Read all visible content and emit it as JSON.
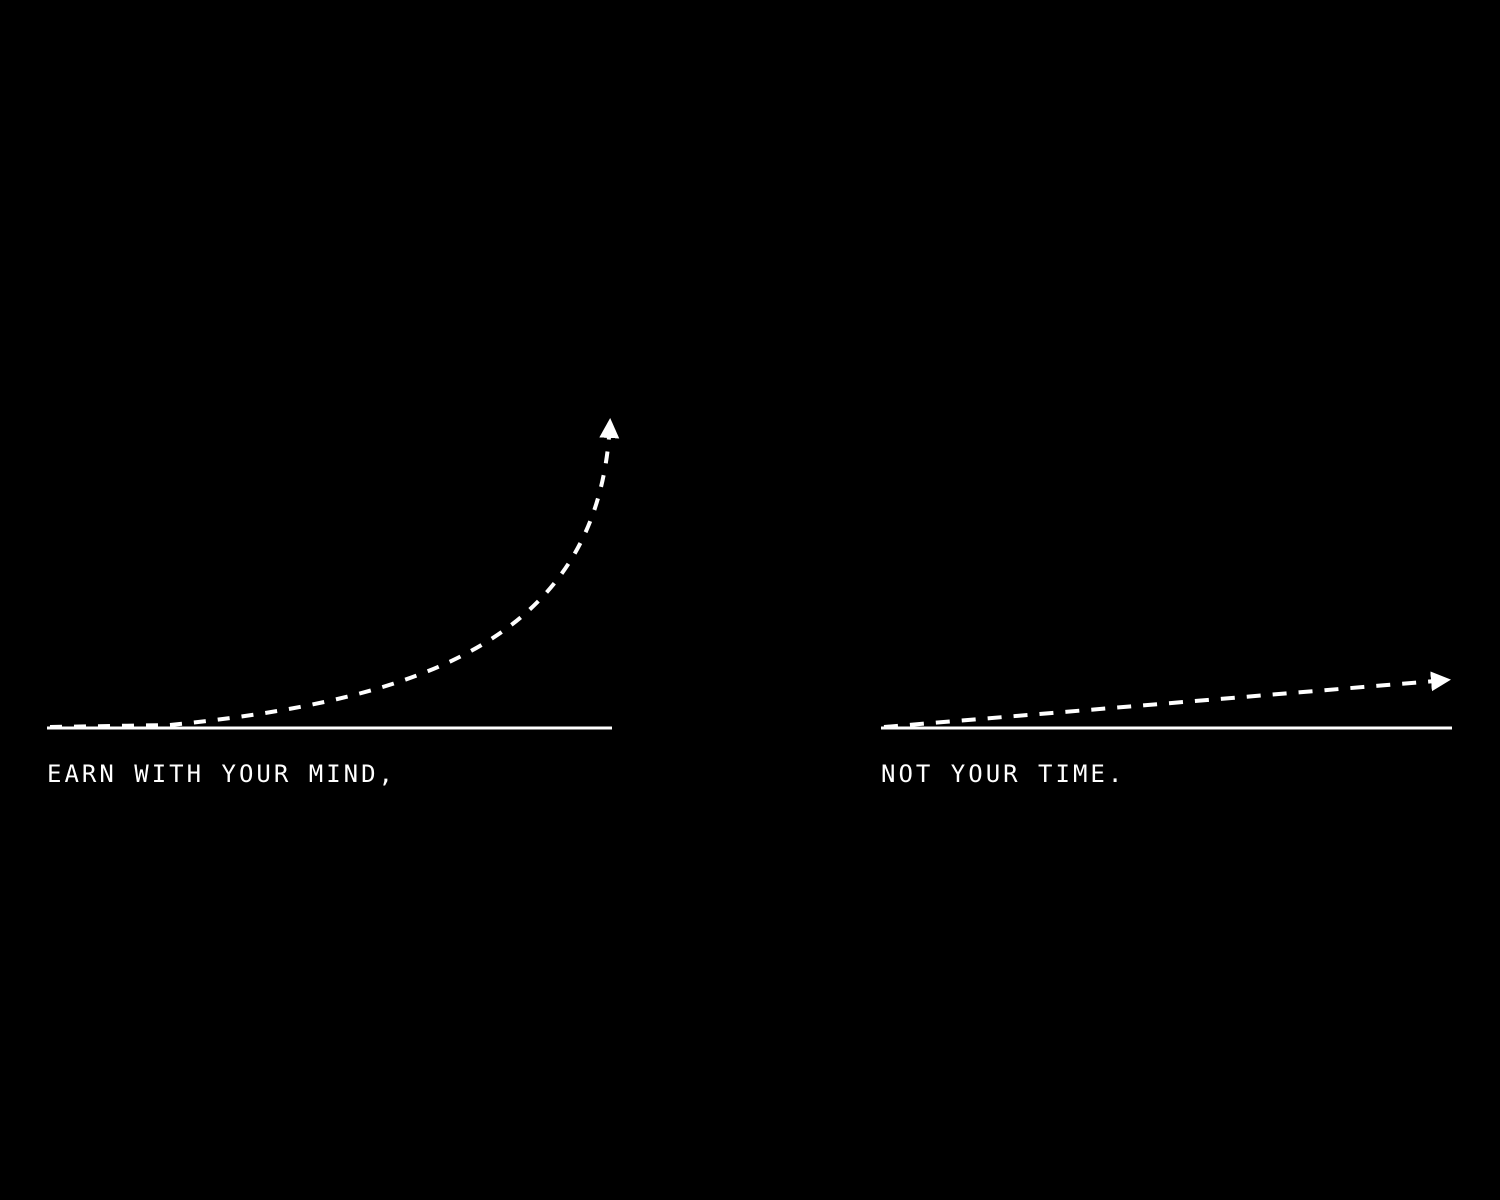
{
  "left_panel": {
    "caption": "EARN WITH YOUR MIND,",
    "curve": "exponential",
    "arrow_direction": "up"
  },
  "right_panel": {
    "caption": "NOT YOUR TIME.",
    "curve": "linear",
    "arrow_direction": "right"
  },
  "colors": {
    "background": "#000000",
    "foreground": "#ffffff"
  }
}
